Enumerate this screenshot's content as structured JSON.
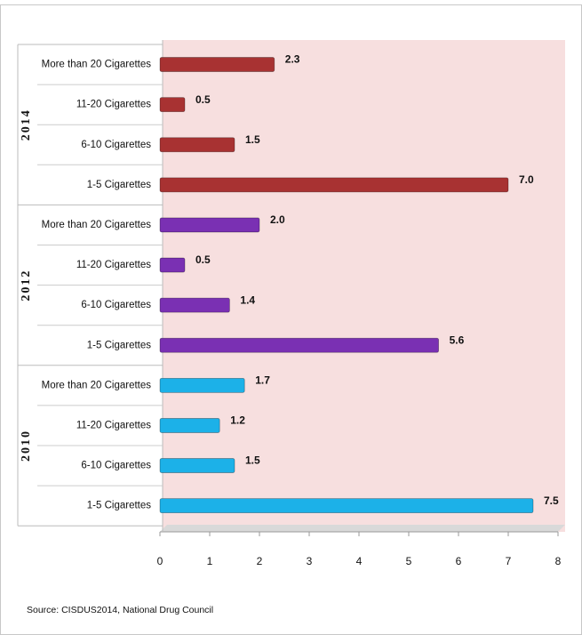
{
  "chart_data": {
    "type": "bar",
    "orientation": "horizontal",
    "categories": [
      "More than 20 Cigarettes",
      "11-20 Cigarettes",
      "6-10 Cigarettes",
      "1-5 Cigarettes"
    ],
    "series": [
      {
        "name": "2014",
        "color": "#a83232",
        "values": [
          2.3,
          0.5,
          1.5,
          7.0
        ],
        "value_labels": [
          "2.3",
          "0.5",
          "1.5",
          "7.0"
        ]
      },
      {
        "name": "2012",
        "color": "#7a30b3",
        "values": [
          2.0,
          0.5,
          1.4,
          5.6
        ],
        "value_labels": [
          "2.0",
          "0.5",
          "1.4",
          "5.6"
        ]
      },
      {
        "name": "2010",
        "color": "#1cb1e8",
        "values": [
          1.7,
          1.2,
          1.5,
          7.5
        ],
        "value_labels": [
          "1.7",
          "1.2",
          "1.5",
          "7.5"
        ]
      }
    ],
    "xlim": [
      0,
      8
    ],
    "xticks": [
      0,
      1,
      2,
      3,
      4,
      5,
      6,
      7,
      8
    ],
    "grid": false,
    "source": "Source: CISDUS2014, National Drug Council"
  }
}
